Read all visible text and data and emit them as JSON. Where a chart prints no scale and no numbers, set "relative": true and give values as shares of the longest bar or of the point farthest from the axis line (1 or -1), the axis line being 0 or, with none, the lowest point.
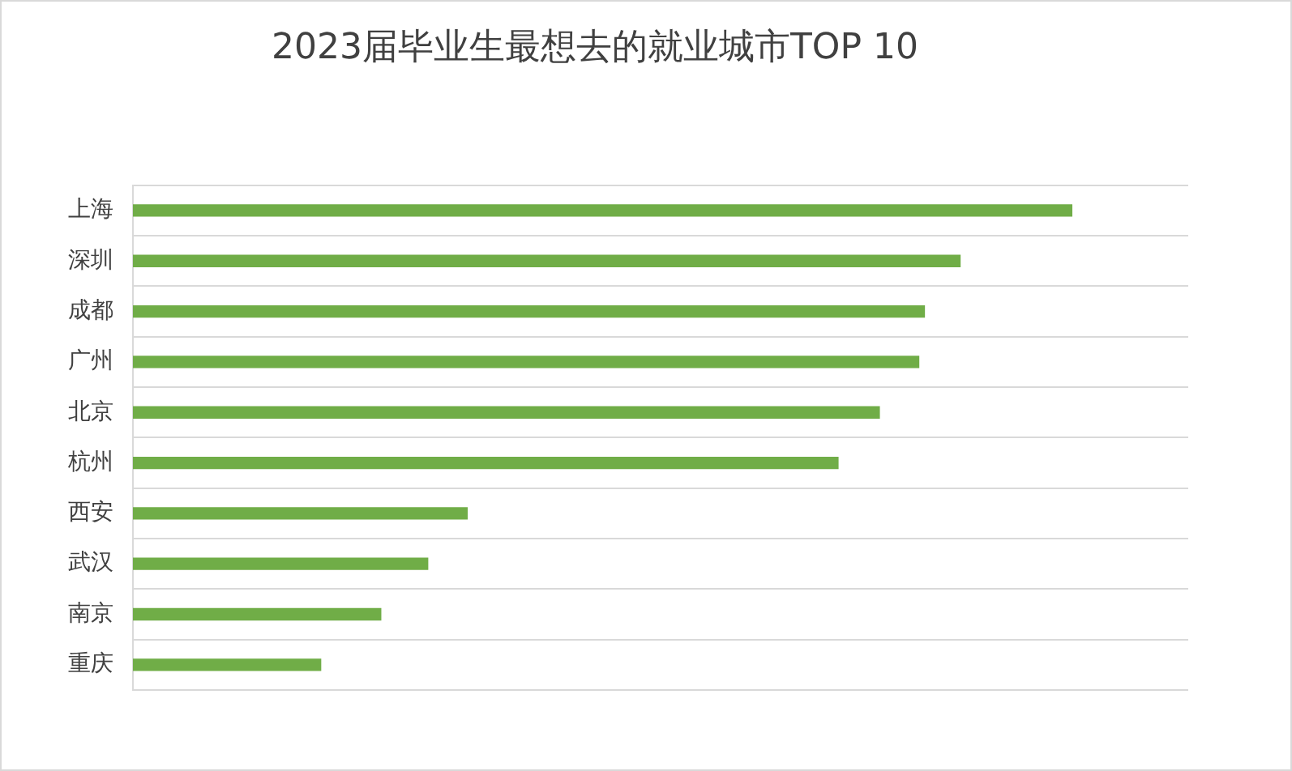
{
  "chart_data": {
    "type": "bar",
    "title": "2023届毕业生最想去的就业城市TOP 10",
    "orientation": "horizontal",
    "relative": true,
    "categories": [
      "上海",
      "深圳",
      "成都",
      "广州",
      "北京",
      "杭州",
      "西安",
      "武汉",
      "南京",
      "重庆"
    ],
    "values": [
      1,
      0.881,
      0.843,
      0.837,
      0.795,
      0.751,
      0.356,
      0.314,
      0.264,
      0.2
    ],
    "color": "#70ad47",
    "grid": "y"
  }
}
